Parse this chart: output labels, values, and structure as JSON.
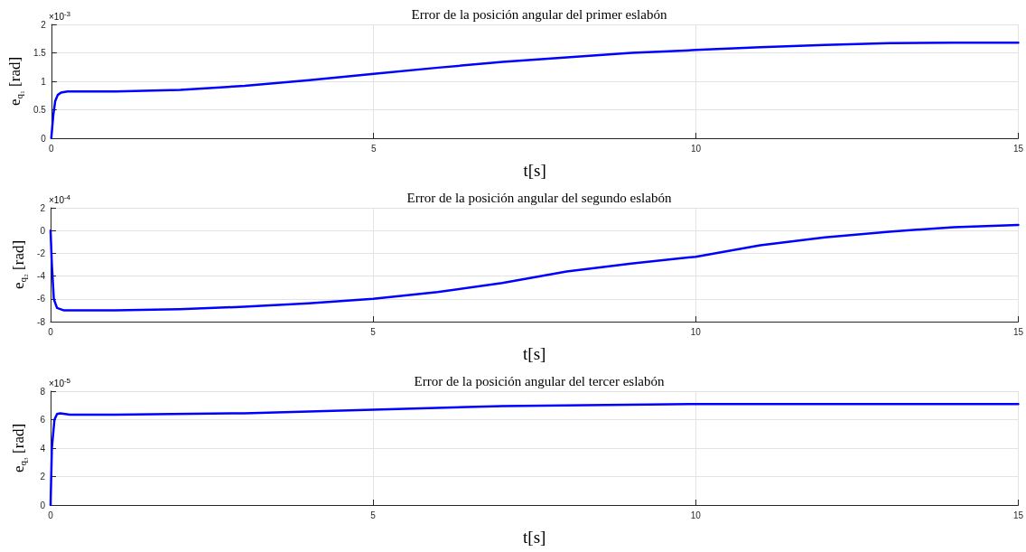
{
  "chart_data": [
    {
      "type": "line",
      "title": "Error de la posición angular del primer eslabón",
      "xlabel": "t[s]",
      "ylabel": "e$_{q₁}$ [rad]",
      "annotations": [
        "×10$^{-3}$"
      ],
      "x": [
        0,
        0.03,
        0.06,
        0.1,
        0.15,
        0.25,
        1,
        2,
        3,
        4,
        5,
        6,
        7,
        8,
        9,
        10,
        11,
        12,
        13,
        14,
        15
      ],
      "series": [
        {
          "color": "#0000ff",
          "values": [
            0,
            0.4,
            0.65,
            0.76,
            0.8,
            0.82,
            0.82,
            0.85,
            0.92,
            1.02,
            1.13,
            1.24,
            1.34,
            1.42,
            1.5,
            1.55,
            1.6,
            1.64,
            1.67,
            1.68,
            1.68
          ]
        }
      ],
      "xlim": [
        0,
        15
      ],
      "xticks": [
        0,
        5,
        10,
        15
      ],
      "ylim": [
        0,
        2
      ],
      "yticks": [
        0,
        0.5,
        1,
        1.5,
        2
      ],
      "grid": true,
      "marker": "none",
      "line_style": "solid"
    },
    {
      "type": "line",
      "title": "Error de la posición angular del segundo eslabón",
      "xlabel": "t[s]",
      "ylabel": "e$_{q₂}$ [rad]",
      "annotations": [
        "×10$^{-4}$"
      ],
      "x": [
        0,
        0.02,
        0.05,
        0.1,
        0.2,
        1,
        2,
        3,
        4,
        5,
        6,
        7,
        8,
        9,
        10,
        11,
        12,
        13,
        14,
        15
      ],
      "series": [
        {
          "color": "#0000ff",
          "values": [
            0,
            -3,
            -6,
            -6.8,
            -7,
            -7,
            -6.9,
            -6.7,
            -6.4,
            -6.0,
            -5.4,
            -4.6,
            -3.6,
            -2.9,
            -2.3,
            -1.3,
            -0.6,
            -0.1,
            0.3,
            0.5
          ]
        }
      ],
      "xlim": [
        0,
        15
      ],
      "xticks": [
        0,
        5,
        10,
        15
      ],
      "ylim": [
        -8,
        2
      ],
      "yticks": [
        -8,
        -6,
        -4,
        -2,
        0,
        2
      ],
      "grid": true,
      "marker": "none",
      "line_style": "solid"
    },
    {
      "type": "line",
      "title": "Error de la posición angular del tercer eslabón",
      "xlabel": "t[s]",
      "ylabel": "e$_{q₃}$ [rad]",
      "annotations": [
        "×10$^{-5}$"
      ],
      "x": [
        0,
        0.02,
        0.06,
        0.1,
        0.15,
        0.3,
        1,
        3,
        5,
        7,
        10,
        12,
        15
      ],
      "series": [
        {
          "color": "#0000ff",
          "values": [
            0,
            4,
            6,
            6.4,
            6.45,
            6.35,
            6.35,
            6.45,
            6.7,
            6.95,
            7.1,
            7.1,
            7.1
          ]
        }
      ],
      "xlim": [
        0,
        15
      ],
      "xticks": [
        0,
        5,
        10,
        15
      ],
      "ylim": [
        0,
        8
      ],
      "yticks": [
        0,
        2,
        4,
        6,
        8
      ],
      "grid": true,
      "marker": "none",
      "line_style": "solid"
    }
  ]
}
